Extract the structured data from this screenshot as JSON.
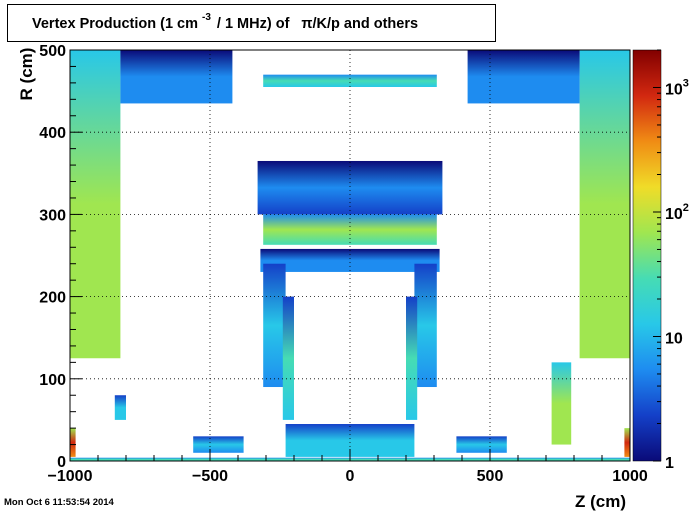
{
  "chart_data": {
    "type": "heatmap",
    "title": {
      "prefix": "Vertex Production (1 cm",
      "exponent": "-3",
      "middle": "/ 1 MHz) of",
      "particles": "π/K/p and others"
    },
    "xlabel": "Z (cm)",
    "ylabel": "R (cm)",
    "xlim": [
      -1000,
      1000
    ],
    "ylim": [
      0,
      500
    ],
    "x_ticks": [
      -1000,
      -500,
      0,
      500,
      1000
    ],
    "y_ticks": [
      0,
      100,
      200,
      300,
      400,
      500
    ],
    "grid": true,
    "colorbar": {
      "scale": "log",
      "range": [
        1,
        2000
      ],
      "tick_labels": [
        {
          "value": 1,
          "label": "1"
        },
        {
          "value": 10,
          "label": "10"
        },
        {
          "value": 100,
          "label": "10",
          "exponent": "2"
        },
        {
          "value": 1000,
          "label": "10",
          "exponent": "3"
        }
      ],
      "colors": [
        "#0a0a78",
        "#1440c8",
        "#1e8cf0",
        "#28c8e8",
        "#46dcb4",
        "#a0e650",
        "#f0dc28",
        "#f08c14",
        "#d22810",
        "#820000"
      ]
    },
    "regions": [
      {
        "name": "outer-calo-left",
        "z": [
          -1000,
          -820
        ],
        "r": [
          125,
          500
        ],
        "level": 1.6
      },
      {
        "name": "outer-calo-right",
        "z": [
          820,
          1000
        ],
        "r": [
          125,
          500
        ],
        "level": 1.6
      },
      {
        "name": "top-ring-left",
        "z": [
          -820,
          -420
        ],
        "r": [
          435,
          500
        ],
        "level": 0.6
      },
      {
        "name": "top-ring-right",
        "z": [
          420,
          820
        ],
        "r": [
          435,
          500
        ],
        "level": 0.6
      },
      {
        "name": "top-bar",
        "z": [
          -310,
          310
        ],
        "r": [
          455,
          470
        ],
        "level": 1.1
      },
      {
        "name": "cryostat-top",
        "z": [
          -330,
          330
        ],
        "r": [
          300,
          365
        ],
        "level": 0.4
      },
      {
        "name": "barrel-modules",
        "z": [
          -310,
          310
        ],
        "r": [
          263,
          300
        ],
        "level": 1.4
      },
      {
        "name": "coil-region",
        "z": [
          -320,
          320
        ],
        "r": [
          230,
          258
        ],
        "level": 0.5
      },
      {
        "name": "tracker-left",
        "z": [
          -310,
          -230
        ],
        "r": [
          90,
          240
        ],
        "level": 0.8
      },
      {
        "name": "tracker-right",
        "z": [
          230,
          310
        ],
        "r": [
          90,
          240
        ],
        "level": 0.8
      },
      {
        "name": "tracker-inner-left",
        "z": [
          -240,
          -200
        ],
        "r": [
          50,
          200
        ],
        "level": 1.0
      },
      {
        "name": "tracker-inner-right",
        "z": [
          200,
          240
        ],
        "r": [
          50,
          200
        ],
        "level": 1.0
      },
      {
        "name": "endcap-left",
        "z": [
          -560,
          -380
        ],
        "r": [
          10,
          30
        ],
        "level": 0.8
      },
      {
        "name": "endcap-right",
        "z": [
          380,
          560
        ],
        "r": [
          10,
          30
        ],
        "level": 0.8
      },
      {
        "name": "beampipe",
        "z": [
          -1000,
          1000
        ],
        "r": [
          0,
          4
        ],
        "level": 1.2
      },
      {
        "name": "forward-left",
        "z": [
          -1000,
          -980
        ],
        "r": [
          5,
          40
        ],
        "level": 2.5
      },
      {
        "name": "forward-right",
        "z": [
          980,
          1000
        ],
        "r": [
          5,
          40
        ],
        "level": 2.5
      },
      {
        "name": "small-block-left",
        "z": [
          -840,
          -800
        ],
        "r": [
          50,
          80
        ],
        "level": 0.9
      },
      {
        "name": "small-block-right",
        "z": [
          720,
          790
        ],
        "r": [
          20,
          120
        ],
        "level": 1.6
      },
      {
        "name": "central-bottom",
        "z": [
          -230,
          230
        ],
        "r": [
          5,
          45
        ],
        "level": 0.9
      }
    ]
  }
}
